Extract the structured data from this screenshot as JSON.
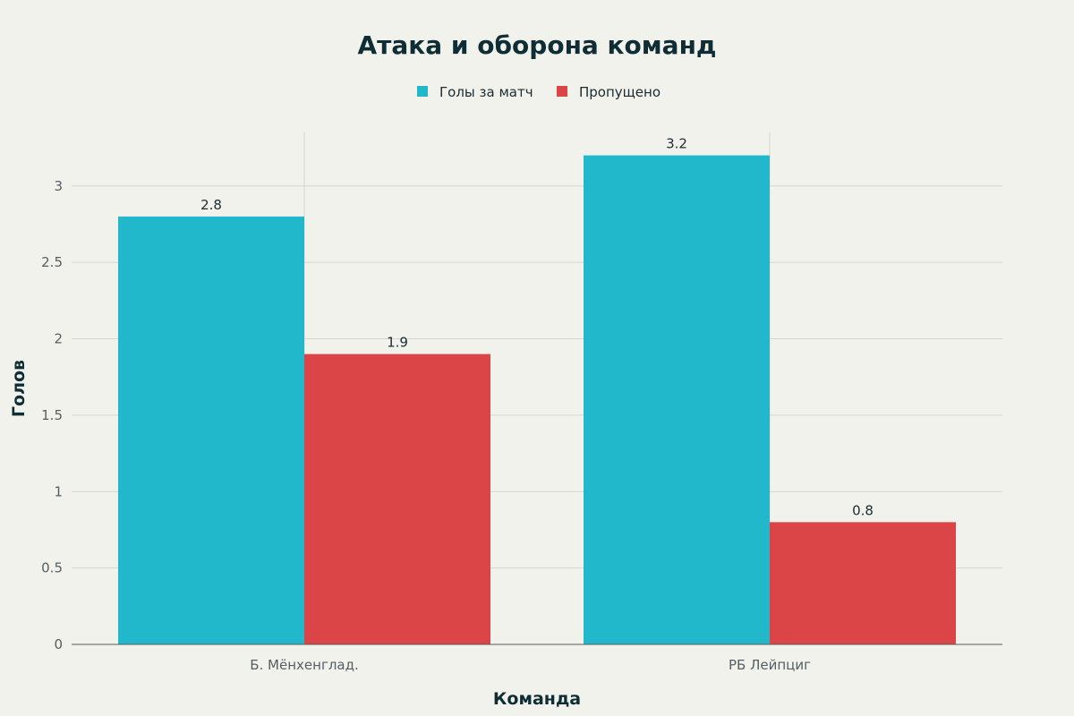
{
  "chart_data": {
    "type": "bar",
    "title": "Атака и оборона команд",
    "xlabel": "Команда",
    "ylabel": "Голов",
    "categories": [
      "Б. Мёнхенглад.",
      "РБ Лейпциг"
    ],
    "series": [
      {
        "name": "Голы за матч",
        "color": "#22b8cc",
        "values": [
          2.8,
          3.2
        ],
        "labels": [
          "2.8",
          "3.2"
        ]
      },
      {
        "name": "Пропущено",
        "color": "#db4548",
        "values": [
          1.9,
          0.8
        ],
        "labels": [
          "1.9",
          "0.8"
        ]
      }
    ],
    "ylim": [
      0,
      3.35
    ],
    "yticks": [
      0,
      0.5,
      1,
      1.5,
      2,
      2.5,
      3
    ],
    "ytick_labels": [
      "0",
      "0.5",
      "1",
      "1.5",
      "2",
      "2.5",
      "3"
    ],
    "grid": true,
    "legend": "top-center"
  }
}
